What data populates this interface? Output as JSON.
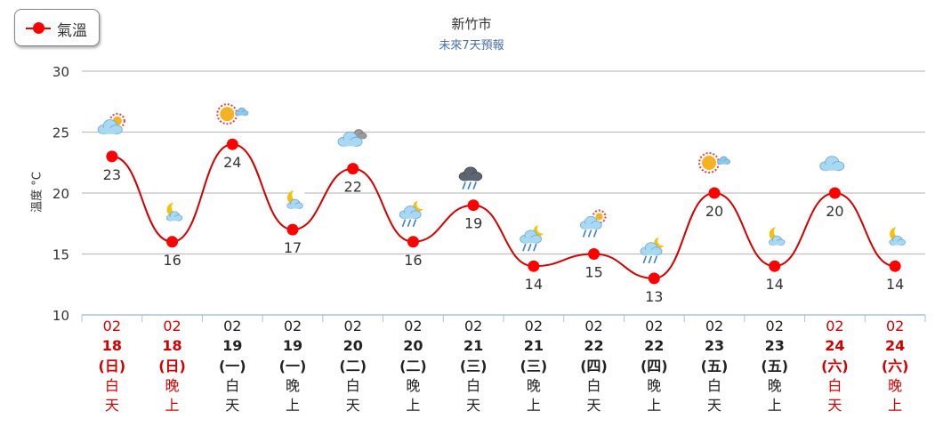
{
  "legend": {
    "label": "氣溫"
  },
  "title": "新竹市",
  "subtitle": "未來7天預報",
  "ylabel": "溫度 °C",
  "chart_data": {
    "type": "line",
    "title": "新竹市",
    "subtitle": "未來7天預報",
    "ylabel": "溫度 °C",
    "xlabel": "",
    "ylim": [
      10,
      30
    ],
    "yticks": [
      10,
      15,
      20,
      25,
      30
    ],
    "grid": true,
    "legend_position": "top-left",
    "series": [
      {
        "name": "氣溫",
        "color": "#ff0000",
        "values": [
          23,
          16,
          24,
          17,
          22,
          16,
          19,
          14,
          15,
          13,
          20,
          14,
          20,
          14
        ]
      }
    ],
    "categories": [
      {
        "month": "02",
        "day": "18",
        "weekday": "(日)",
        "period": [
          "白",
          "天"
        ],
        "color": "#d40000",
        "weather_icon": "partly-cloudy-sun-icon"
      },
      {
        "month": "02",
        "day": "18",
        "weekday": "(日)",
        "period": [
          "晚",
          "上"
        ],
        "color": "#d40000",
        "weather_icon": "moon-cloud-icon"
      },
      {
        "month": "02",
        "day": "19",
        "weekday": "(一)",
        "period": [
          "白",
          "天"
        ],
        "color": "#222222",
        "weather_icon": "sun-icon"
      },
      {
        "month": "02",
        "day": "19",
        "weekday": "(一)",
        "period": [
          "晚",
          "上"
        ],
        "color": "#222222",
        "weather_icon": "moon-cloud-icon"
      },
      {
        "month": "02",
        "day": "20",
        "weekday": "(二)",
        "period": [
          "白",
          "天"
        ],
        "color": "#222222",
        "weather_icon": "cloudy-icon"
      },
      {
        "month": "02",
        "day": "20",
        "weekday": "(二)",
        "period": [
          "晚",
          "上"
        ],
        "color": "#222222",
        "weather_icon": "moon-cloud-rain-icon"
      },
      {
        "month": "02",
        "day": "21",
        "weekday": "(三)",
        "period": [
          "白",
          "天"
        ],
        "color": "#222222",
        "weather_icon": "dark-rain-cloud-icon"
      },
      {
        "month": "02",
        "day": "21",
        "weekday": "(三)",
        "period": [
          "晚",
          "上"
        ],
        "color": "#222222",
        "weather_icon": "moon-cloud-rain-icon"
      },
      {
        "month": "02",
        "day": "22",
        "weekday": "(四)",
        "period": [
          "白",
          "天"
        ],
        "color": "#222222",
        "weather_icon": "sun-cloud-rain-icon"
      },
      {
        "month": "02",
        "day": "22",
        "weekday": "(四)",
        "period": [
          "晚",
          "上"
        ],
        "color": "#222222",
        "weather_icon": "moon-cloud-rain-icon"
      },
      {
        "month": "02",
        "day": "23",
        "weekday": "(五)",
        "period": [
          "白",
          "天"
        ],
        "color": "#222222",
        "weather_icon": "sun-icon"
      },
      {
        "month": "02",
        "day": "23",
        "weekday": "(五)",
        "period": [
          "晚",
          "上"
        ],
        "color": "#222222",
        "weather_icon": "moon-cloud-icon"
      },
      {
        "month": "02",
        "day": "24",
        "weekday": "(六)",
        "period": [
          "白",
          "天"
        ],
        "color": "#d40000",
        "weather_icon": "cloud-icon"
      },
      {
        "month": "02",
        "day": "24",
        "weekday": "(六)",
        "period": [
          "晚",
          "上"
        ],
        "color": "#d40000",
        "weather_icon": "moon-cloud-icon"
      }
    ]
  }
}
